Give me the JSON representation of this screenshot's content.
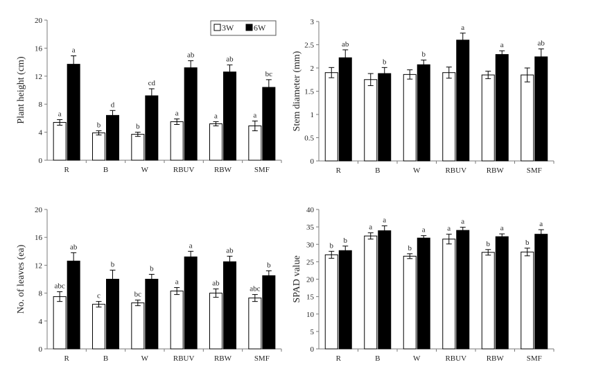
{
  "legend": {
    "w3_label": "3W",
    "w6_label": "6W"
  },
  "colors": {
    "w3_fill": "#ffffff",
    "w6_fill": "#000000",
    "axis": "#7a7a7a",
    "text": "#222222"
  },
  "chart_data": [
    {
      "type": "bar",
      "title": "",
      "xlabel": "",
      "ylabel": "Plant height (cm)",
      "categories": [
        "R",
        "B",
        "W",
        "RBUV",
        "RBW",
        "SMF"
      ],
      "ylim": [
        0,
        20
      ],
      "yticks": [
        0,
        4,
        8,
        12,
        16,
        20
      ],
      "ytick_labels": [
        "0",
        "4",
        "8",
        "12",
        "16",
        "20"
      ],
      "grid": false,
      "legend_position": "top-right",
      "series": [
        {
          "name": "3W",
          "values": [
            5.4,
            3.9,
            3.7,
            5.5,
            5.2,
            4.9
          ],
          "errors": [
            0.4,
            0.3,
            0.3,
            0.4,
            0.3,
            0.7
          ],
          "labels": [
            "a",
            "b",
            "b",
            "a",
            "a",
            "a"
          ]
        },
        {
          "name": "6W",
          "values": [
            13.7,
            6.4,
            9.2,
            13.2,
            12.6,
            10.4
          ],
          "errors": [
            1.2,
            0.7,
            1.0,
            1.0,
            1.0,
            1.1
          ],
          "labels": [
            "a",
            "d",
            "cd",
            "ab",
            "ab",
            "bc"
          ]
        }
      ]
    },
    {
      "type": "bar",
      "title": "",
      "xlabel": "",
      "ylabel": "Stem diameter (mm)",
      "categories": [
        "R",
        "B",
        "W",
        "RBUV",
        "RBW",
        "SMF"
      ],
      "ylim": [
        0,
        3
      ],
      "yticks": [
        0,
        0.5,
        1,
        1.5,
        2,
        2.5,
        3
      ],
      "ytick_labels": [
        "0",
        "0.5",
        "1",
        "1.5",
        "2",
        "2.5",
        "3"
      ],
      "grid": false,
      "legend_position": "none",
      "series": [
        {
          "name": "3W",
          "values": [
            1.9,
            1.75,
            1.86,
            1.9,
            1.85,
            1.85
          ],
          "errors": [
            0.11,
            0.13,
            0.1,
            0.12,
            0.08,
            0.15
          ],
          "labels": [
            "",
            "",
            "",
            "",
            "",
            ""
          ]
        },
        {
          "name": "6W",
          "values": [
            2.22,
            1.88,
            2.07,
            2.6,
            2.29,
            2.24
          ],
          "errors": [
            0.17,
            0.13,
            0.1,
            0.15,
            0.08,
            0.17
          ],
          "labels": [
            "ab",
            "b",
            "b",
            "a",
            "a",
            "ab"
          ]
        }
      ]
    },
    {
      "type": "bar",
      "title": "",
      "xlabel": "",
      "ylabel": "No. of leaves (ea)",
      "categories": [
        "R",
        "B",
        "W",
        "RBUV",
        "RBW",
        "SMF"
      ],
      "ylim": [
        0,
        20
      ],
      "yticks": [
        0,
        4,
        8,
        12,
        16,
        20
      ],
      "ytick_labels": [
        "0",
        "4",
        "8",
        "12",
        "16",
        "20"
      ],
      "grid": false,
      "legend_position": "none",
      "series": [
        {
          "name": "3W",
          "values": [
            7.5,
            6.4,
            6.6,
            8.3,
            8.0,
            7.3
          ],
          "errors": [
            0.7,
            0.4,
            0.4,
            0.5,
            0.6,
            0.5
          ],
          "labels": [
            "abc",
            "c",
            "bc",
            "a",
            "ab",
            "abc"
          ]
        },
        {
          "name": "6W",
          "values": [
            12.6,
            10.0,
            10.0,
            13.2,
            12.5,
            10.5
          ],
          "errors": [
            1.2,
            1.3,
            0.7,
            0.8,
            0.8,
            0.7
          ],
          "labels": [
            "ab",
            "b",
            "b",
            "a",
            "ab",
            "b"
          ]
        }
      ]
    },
    {
      "type": "bar",
      "title": "",
      "xlabel": "",
      "ylabel": "SPAD value",
      "categories": [
        "R",
        "B",
        "W",
        "RBUV",
        "RBW",
        "SMF"
      ],
      "ylim": [
        0,
        40
      ],
      "yticks": [
        0,
        5,
        10,
        15,
        20,
        25,
        30,
        35,
        40
      ],
      "ytick_labels": [
        "0",
        "5",
        "10",
        "15",
        "20",
        "25",
        "30",
        "35",
        "40"
      ],
      "grid": false,
      "legend_position": "none",
      "series": [
        {
          "name": "3W",
          "values": [
            27.0,
            32.4,
            26.6,
            31.5,
            27.7,
            27.8
          ],
          "errors": [
            1.0,
            0.9,
            0.7,
            1.4,
            0.8,
            1.1
          ],
          "labels": [
            "b",
            "a",
            "b",
            "a",
            "b",
            "b"
          ]
        },
        {
          "name": "6W",
          "values": [
            28.2,
            33.9,
            31.8,
            34.0,
            32.2,
            32.9
          ],
          "errors": [
            1.3,
            1.4,
            0.7,
            0.9,
            0.8,
            1.3
          ],
          "labels": [
            "b",
            "a",
            "a",
            "a",
            "a",
            "a"
          ]
        }
      ]
    }
  ]
}
